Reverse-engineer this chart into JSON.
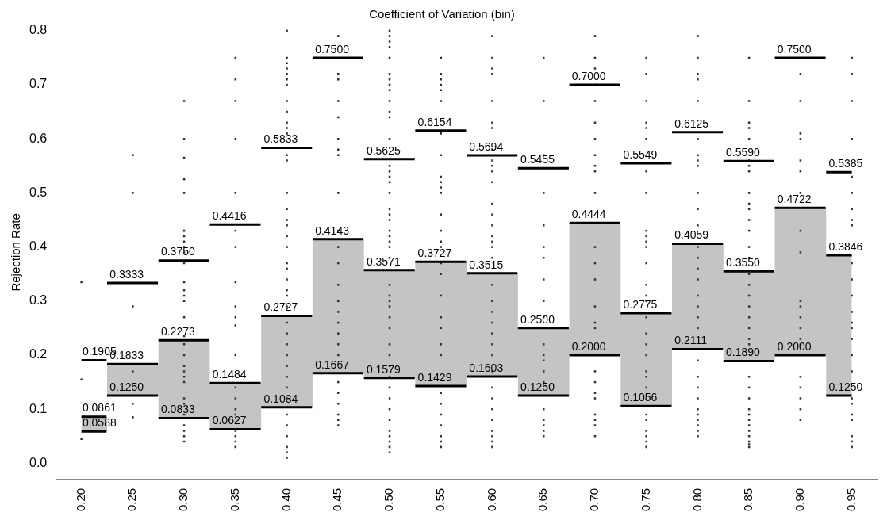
{
  "chart_data": {
    "type": "step",
    "title": "Coefficient of Variation (bin)",
    "ylabel": "Rejection Rate",
    "categories": [
      "0.20",
      "0.25",
      "0.30",
      "0.35",
      "0.40",
      "0.45",
      "0.50",
      "0.55",
      "0.60",
      "0.65",
      "0.70",
      "0.75",
      "0.80",
      "0.85",
      "0.90",
      "0.95"
    ],
    "ylim": [
      -0.03,
      0.81
    ],
    "yticks": [
      {
        "value": 0,
        "label": "0.0"
      },
      {
        "value": 0.1,
        "label": "0.1"
      },
      {
        "value": 0.2,
        "label": "0.2"
      },
      {
        "value": 0.3,
        "label": "0.3"
      },
      {
        "value": 0.4,
        "label": "0.4"
      },
      {
        "value": 0.5,
        "label": "0.5"
      },
      {
        "value": 0.6,
        "label": "0.6"
      },
      {
        "value": 0.7,
        "label": "0.7"
      },
      {
        "value": 0.8,
        "label": "0.8"
      }
    ],
    "grid": false,
    "legend": false,
    "marker": "none",
    "line_style": "solid",
    "series": [
      {
        "color": "#000000",
        "values": [
          0.1905,
          0.3333,
          0.375,
          0.4416,
          0.5833,
          0.75,
          0.5625,
          0.6154,
          0.5694,
          0.5455,
          0.7,
          0.5549,
          0.6125,
          0.559,
          0.75,
          0.5385
        ],
        "value_labels": [
          "0.1905",
          "0.3333",
          "0.3750",
          "0.4416",
          "0.5833",
          "0.7500",
          "0.5625",
          "0.6154",
          "0.5694",
          "0.5455",
          "0.7000",
          "0.5549",
          "0.6125",
          "0.5590",
          "0.7500",
          "0.5385"
        ]
      },
      {
        "color": "#000000",
        "values": [
          0.0861,
          0.1833,
          0.2273,
          0.1484,
          0.2727,
          0.4143,
          0.3571,
          0.3727,
          0.3515,
          0.25,
          0.4444,
          0.2775,
          0.4059,
          0.355,
          0.4722,
          0.3846
        ],
        "value_labels": [
          "0.0861",
          "0.1833",
          "0.2273",
          "0.1484",
          "0.2727",
          "0.4143",
          "0.3571",
          "0.3727",
          "0.3515",
          "0.2500",
          "0.4444",
          "0.2775",
          "0.4059",
          "0.3550",
          "0.4722",
          "0.3846"
        ],
        "lower": [
          0.0588,
          0.125,
          0.0833,
          0.0627,
          0.1034,
          0.1667,
          0.1579,
          0.1429,
          0.1603,
          0.125,
          0.2,
          0.1056,
          0.2111,
          0.189,
          0.2,
          0.125
        ],
        "upper": [
          0.0861,
          0.1833,
          0.2273,
          0.1484,
          0.2727,
          0.4143,
          0.3571,
          0.3727,
          0.3515,
          0.25,
          0.4444,
          0.2775,
          0.4059,
          0.355,
          0.4722,
          0.3846
        ]
      },
      {
        "color": "#000000",
        "values": [
          0.0588,
          0.125,
          0.0833,
          0.0627,
          0.1034,
          0.1667,
          0.1579,
          0.1429,
          0.1603,
          0.125,
          0.2,
          0.1056,
          0.2111,
          0.189,
          0.2,
          0.125
        ],
        "value_labels": [
          "0.0588",
          "0.1250",
          "0.0833",
          "0.0627",
          "0.1034",
          "0.1667",
          "0.1579",
          "0.1429",
          "0.1603",
          "0.1250",
          "0.2000",
          "0.1056",
          "0.2111",
          "0.1890",
          "0.2000",
          "0.1250"
        ]
      },
      {
        "type": "scatter",
        "color": "#333333",
        "marker": "square",
        "x": [
          "0.20",
          "0.20",
          "0.20",
          "0.25",
          "0.25",
          "0.25",
          "0.25",
          "0.25",
          "0.25",
          "0.30",
          "0.30",
          "0.30",
          "0.30",
          "0.30",
          "0.30",
          "0.30",
          "0.30",
          "0.30",
          "0.30",
          "0.30",
          "0.30",
          "0.30",
          "0.30",
          "0.30",
          "0.30",
          "0.30",
          "0.30",
          "0.30",
          "0.30",
          "0.30",
          "0.30",
          "0.30",
          "0.30",
          "0.30",
          "0.30",
          "0.30",
          "0.30",
          "0.30",
          "0.30",
          "0.35",
          "0.35",
          "0.35",
          "0.35",
          "0.35",
          "0.35",
          "0.35",
          "0.35",
          "0.35",
          "0.35",
          "0.35",
          "0.35",
          "0.35",
          "0.35",
          "0.35",
          "0.35",
          "0.35",
          "0.35",
          "0.35",
          "0.35",
          "0.40",
          "0.40",
          "0.40",
          "0.40",
          "0.40",
          "0.40",
          "0.40",
          "0.40",
          "0.40",
          "0.40",
          "0.40",
          "0.40",
          "0.40",
          "0.40",
          "0.40",
          "0.40",
          "0.40",
          "0.40",
          "0.40",
          "0.40",
          "0.40",
          "0.40",
          "0.40",
          "0.40",
          "0.40",
          "0.40",
          "0.40",
          "0.40",
          "0.40",
          "0.40",
          "0.40",
          "0.40",
          "0.40",
          "0.40",
          "0.40",
          "0.40",
          "0.40",
          "0.40",
          "0.40",
          "0.40",
          "0.45",
          "0.45",
          "0.45",
          "0.45",
          "0.45",
          "0.45",
          "0.45",
          "0.45",
          "0.45",
          "0.45",
          "0.45",
          "0.45",
          "0.45",
          "0.45",
          "0.45",
          "0.45",
          "0.45",
          "0.45",
          "0.45",
          "0.45",
          "0.45",
          "0.45",
          "0.45",
          "0.45",
          "0.45",
          "0.50",
          "0.50",
          "0.50",
          "0.50",
          "0.50",
          "0.50",
          "0.50",
          "0.50",
          "0.50",
          "0.50",
          "0.50",
          "0.50",
          "0.50",
          "0.50",
          "0.50",
          "0.50",
          "0.50",
          "0.50",
          "0.50",
          "0.50",
          "0.50",
          "0.50",
          "0.50",
          "0.50",
          "0.50",
          "0.50",
          "0.50",
          "0.50",
          "0.50",
          "0.50",
          "0.50",
          "0.50",
          "0.50",
          "0.50",
          "0.50",
          "0.50",
          "0.50",
          "0.50",
          "0.50",
          "0.50",
          "0.50",
          "0.50",
          "0.50",
          "0.50",
          "0.50",
          "0.55",
          "0.55",
          "0.55",
          "0.55",
          "0.55",
          "0.55",
          "0.55",
          "0.55",
          "0.55",
          "0.55",
          "0.55",
          "0.55",
          "0.55",
          "0.55",
          "0.55",
          "0.55",
          "0.55",
          "0.55",
          "0.55",
          "0.55",
          "0.55",
          "0.55",
          "0.55",
          "0.55",
          "0.55",
          "0.55",
          "0.55",
          "0.55",
          "0.55",
          "0.55",
          "0.60",
          "0.60",
          "0.60",
          "0.60",
          "0.60",
          "0.60",
          "0.60",
          "0.60",
          "0.60",
          "0.60",
          "0.60",
          "0.60",
          "0.60",
          "0.60",
          "0.60",
          "0.60",
          "0.60",
          "0.60",
          "0.60",
          "0.60",
          "0.60",
          "0.60",
          "0.60",
          "0.60",
          "0.60",
          "0.60",
          "0.60",
          "0.60",
          "0.60",
          "0.60",
          "0.60",
          "0.60",
          "0.60",
          "0.60",
          "0.60",
          "0.65",
          "0.65",
          "0.65",
          "0.65",
          "0.65",
          "0.65",
          "0.65",
          "0.65",
          "0.65",
          "0.65",
          "0.65",
          "0.65",
          "0.65",
          "0.65",
          "0.65",
          "0.65",
          "0.65",
          "0.65",
          "0.65",
          "0.65",
          "0.70",
          "0.70",
          "0.70",
          "0.70",
          "0.70",
          "0.70",
          "0.70",
          "0.70",
          "0.70",
          "0.70",
          "0.70",
          "0.70",
          "0.70",
          "0.70",
          "0.70",
          "0.70",
          "0.70",
          "0.70",
          "0.70",
          "0.70",
          "0.70",
          "0.70",
          "0.70",
          "0.70",
          "0.70",
          "0.75",
          "0.75",
          "0.75",
          "0.75",
          "0.75",
          "0.75",
          "0.75",
          "0.75",
          "0.75",
          "0.75",
          "0.75",
          "0.75",
          "0.75",
          "0.75",
          "0.75",
          "0.75",
          "0.75",
          "0.75",
          "0.75",
          "0.75",
          "0.75",
          "0.75",
          "0.75",
          "0.75",
          "0.75",
          "0.75",
          "0.75",
          "0.75",
          "0.75",
          "0.75",
          "0.80",
          "0.80",
          "0.80",
          "0.80",
          "0.80",
          "0.80",
          "0.80",
          "0.80",
          "0.80",
          "0.80",
          "0.80",
          "0.80",
          "0.80",
          "0.80",
          "0.80",
          "0.80",
          "0.80",
          "0.80",
          "0.80",
          "0.80",
          "0.80",
          "0.80",
          "0.80",
          "0.80",
          "0.80",
          "0.80",
          "0.80",
          "0.80",
          "0.80",
          "0.80",
          "0.85",
          "0.85",
          "0.85",
          "0.85",
          "0.85",
          "0.85",
          "0.85",
          "0.85",
          "0.85",
          "0.85",
          "0.85",
          "0.85",
          "0.85",
          "0.85",
          "0.85",
          "0.85",
          "0.85",
          "0.85",
          "0.85",
          "0.85",
          "0.85",
          "0.85",
          "0.85",
          "0.85",
          "0.85",
          "0.85",
          "0.85",
          "0.85",
          "0.85",
          "0.85",
          "0.85",
          "0.85",
          "0.85",
          "0.85",
          "0.85",
          "0.90",
          "0.90",
          "0.90",
          "0.90",
          "0.90",
          "0.90",
          "0.90",
          "0.90",
          "0.90",
          "0.90",
          "0.90",
          "0.90",
          "0.90",
          "0.90",
          "0.90",
          "0.90",
          "0.90",
          "0.90",
          "0.90",
          "0.90",
          "0.95",
          "0.95",
          "0.95",
          "0.95",
          "0.95",
          "0.95",
          "0.95",
          "0.95",
          "0.95",
          "0.95",
          "0.95",
          "0.95",
          "0.95",
          "0.95",
          "0.95",
          "0.95",
          "0.95",
          "0.95",
          "0.95",
          "0.95",
          "0.95",
          "0.95",
          "0.95",
          "0.95",
          "0.95"
        ],
        "values": [
          0.335,
          0.155,
          0.045,
          0.57,
          0.5,
          0.29,
          0.17,
          0.11,
          0.085,
          0.67,
          0.6,
          0.565,
          0.525,
          0.5,
          0.43,
          0.42,
          0.41,
          0.4,
          0.39,
          0.37,
          0.335,
          0.32,
          0.31,
          0.3,
          0.27,
          0.235,
          0.22,
          0.2,
          0.18,
          0.17,
          0.16,
          0.15,
          0.12,
          0.11,
          0.09,
          0.07,
          0.06,
          0.05,
          0.04,
          0.75,
          0.71,
          0.67,
          0.6,
          0.5,
          0.43,
          0.4,
          0.335,
          0.29,
          0.27,
          0.255,
          0.2,
          0.14,
          0.12,
          0.1,
          0.09,
          0.06,
          0.05,
          0.04,
          0.03,
          0.8,
          0.75,
          0.74,
          0.73,
          0.72,
          0.71,
          0.7,
          0.67,
          0.65,
          0.63,
          0.62,
          0.61,
          0.57,
          0.56,
          0.5,
          0.47,
          0.45,
          0.44,
          0.42,
          0.4,
          0.37,
          0.36,
          0.34,
          0.32,
          0.31,
          0.29,
          0.26,
          0.24,
          0.22,
          0.2,
          0.18,
          0.16,
          0.14,
          0.12,
          0.09,
          0.07,
          0.05,
          0.03,
          0.02,
          0.01,
          0.79,
          0.72,
          0.71,
          0.67,
          0.64,
          0.6,
          0.58,
          0.57,
          0.5,
          0.43,
          0.4,
          0.37,
          0.33,
          0.3,
          0.28,
          0.26,
          0.24,
          0.22,
          0.2,
          0.15,
          0.13,
          0.11,
          0.09,
          0.08,
          0.07,
          0.8,
          0.79,
          0.78,
          0.77,
          0.75,
          0.72,
          0.71,
          0.7,
          0.69,
          0.67,
          0.65,
          0.64,
          0.6,
          0.55,
          0.54,
          0.53,
          0.52,
          0.5,
          0.47,
          0.46,
          0.45,
          0.43,
          0.42,
          0.41,
          0.4,
          0.38,
          0.33,
          0.31,
          0.3,
          0.29,
          0.27,
          0.25,
          0.22,
          0.2,
          0.18,
          0.16,
          0.14,
          0.12,
          0.1,
          0.08,
          0.06,
          0.05,
          0.04,
          0.03,
          0.02,
          0.75,
          0.72,
          0.71,
          0.7,
          0.69,
          0.67,
          0.61,
          0.57,
          0.53,
          0.52,
          0.51,
          0.5,
          0.46,
          0.43,
          0.41,
          0.4,
          0.37,
          0.35,
          0.31,
          0.27,
          0.25,
          0.22,
          0.2,
          0.13,
          0.11,
          0.09,
          0.07,
          0.05,
          0.04,
          0.03,
          0.79,
          0.75,
          0.73,
          0.72,
          0.67,
          0.63,
          0.62,
          0.58,
          0.56,
          0.55,
          0.54,
          0.52,
          0.48,
          0.46,
          0.44,
          0.42,
          0.41,
          0.4,
          0.38,
          0.33,
          0.3,
          0.28,
          0.26,
          0.24,
          0.22,
          0.2,
          0.17,
          0.14,
          0.12,
          0.1,
          0.08,
          0.06,
          0.05,
          0.04,
          0.03,
          0.75,
          0.67,
          0.57,
          0.5,
          0.44,
          0.4,
          0.38,
          0.34,
          0.3,
          0.27,
          0.22,
          0.2,
          0.19,
          0.17,
          0.15,
          0.1,
          0.08,
          0.07,
          0.06,
          0.05,
          0.79,
          0.75,
          0.73,
          0.7,
          0.67,
          0.63,
          0.6,
          0.57,
          0.55,
          0.54,
          0.5,
          0.4,
          0.37,
          0.34,
          0.29,
          0.26,
          0.25,
          0.17,
          0.15,
          0.13,
          0.12,
          0.09,
          0.08,
          0.07,
          0.05,
          0.75,
          0.72,
          0.67,
          0.63,
          0.62,
          0.6,
          0.54,
          0.5,
          0.43,
          0.42,
          0.41,
          0.4,
          0.37,
          0.33,
          0.31,
          0.3,
          0.27,
          0.24,
          0.22,
          0.2,
          0.17,
          0.16,
          0.14,
          0.12,
          0.09,
          0.08,
          0.06,
          0.05,
          0.04,
          0.03,
          0.79,
          0.75,
          0.72,
          0.71,
          0.67,
          0.6,
          0.57,
          0.56,
          0.55,
          0.5,
          0.47,
          0.44,
          0.4,
          0.38,
          0.36,
          0.34,
          0.31,
          0.29,
          0.27,
          0.25,
          0.19,
          0.16,
          0.14,
          0.12,
          0.1,
          0.09,
          0.08,
          0.07,
          0.06,
          0.05,
          0.75,
          0.67,
          0.63,
          0.62,
          0.6,
          0.56,
          0.55,
          0.54,
          0.5,
          0.48,
          0.47,
          0.45,
          0.43,
          0.4,
          0.38,
          0.35,
          0.33,
          0.31,
          0.29,
          0.27,
          0.25,
          0.23,
          0.22,
          0.16,
          0.14,
          0.12,
          0.1,
          0.09,
          0.08,
          0.07,
          0.06,
          0.05,
          0.04,
          0.035,
          0.03,
          0.72,
          0.67,
          0.61,
          0.6,
          0.56,
          0.54,
          0.5,
          0.43,
          0.39,
          0.3,
          0.29,
          0.27,
          0.25,
          0.23,
          0.22,
          0.16,
          0.14,
          0.12,
          0.1,
          0.08,
          0.75,
          0.72,
          0.67,
          0.6,
          0.53,
          0.5,
          0.47,
          0.45,
          0.44,
          0.37,
          0.34,
          0.31,
          0.28,
          0.26,
          0.25,
          0.23,
          0.2,
          0.17,
          0.12,
          0.11,
          0.09,
          0.08,
          0.05,
          0.04,
          0.03
        ]
      }
    ]
  }
}
